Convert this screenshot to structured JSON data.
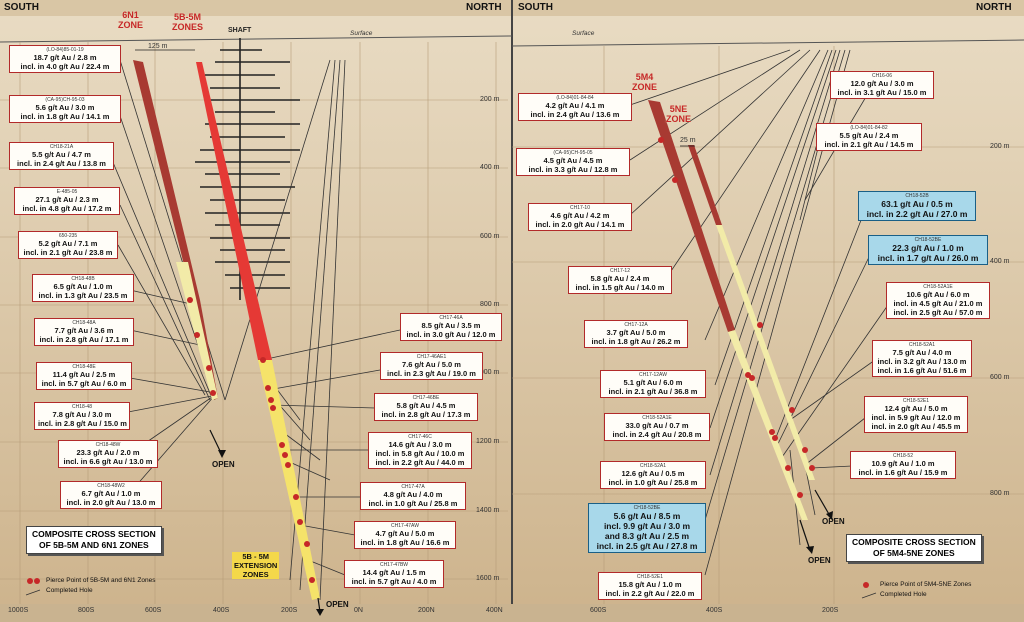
{
  "left_panel": {
    "south_label": "SOUTH",
    "north_label": "NORTH",
    "surface_label": "Surface",
    "shaft_label": "SHAFT",
    "zone_6n1": [
      "6N1",
      "ZONE"
    ],
    "zone_5b5m": [
      "5B-5M",
      "ZONES"
    ],
    "spacing_label": "125 m",
    "extension_label": [
      "5B - 5M",
      "EXTENSION",
      "ZONES"
    ],
    "open_labels": [
      "OPEN",
      "OPEN"
    ],
    "title": [
      "COMPOSITE CROSS SECTION",
      "OF 5B-5M AND 6N1 ZONES"
    ],
    "legend": {
      "pierce": "Pierce Point of 5B-5M and 6N1 Zones",
      "hole": "Completed Hole"
    },
    "depths": [
      "200 m",
      "400 m",
      "600 m",
      "800 m",
      "1000 m",
      "1200 m",
      "1400 m",
      "1600 m"
    ],
    "eastings": [
      "1000S",
      "800S",
      "600S",
      "400S",
      "200S",
      "0N",
      "200N",
      "400N"
    ],
    "labels": [
      {
        "hole": "(LO-84)85-01-19",
        "lines": [
          "18.7 g/t Au / 2.8 m",
          "incl. in 4.0 g/t Au / 22.4 m"
        ]
      },
      {
        "hole": "(CA-95)CH-95-03",
        "lines": [
          "5.6 g/t Au / 3.0 m",
          "incl. in 1.8 g/t Au / 14.1 m"
        ]
      },
      {
        "hole": "CH18-21A",
        "lines": [
          "5.5 g/t Au / 4.7 m",
          "incl. in 2.4 g/t Au / 13.8 m"
        ]
      },
      {
        "hole": "E-485-05",
        "lines": [
          "27.1 g/t Au / 2.3 m",
          "incl. in 4.8 g/t Au / 17.2 m"
        ]
      },
      {
        "hole": "650-235",
        "lines": [
          "5.2 g/t Au / 7.1 m",
          "incl. in 2.1 g/t Au / 23.8 m"
        ]
      },
      {
        "hole": "CH18-48B",
        "lines": [
          "6.5 g/t Au / 1.0 m",
          "incl. in 1.3 g/t Au / 23.5 m"
        ]
      },
      {
        "hole": "CH18-48A",
        "lines": [
          "7.7 g/t Au / 3.6 m",
          "incl. in 2.8 g/t Au / 17.1 m"
        ]
      },
      {
        "hole": "CH18-48E",
        "lines": [
          "11.4 g/t Au / 2.5 m",
          "incl. in 5.7 g/t Au / 6.0 m"
        ]
      },
      {
        "hole": "CH18-48",
        "lines": [
          "7.8 g/t Au / 3.0 m",
          "incl. in 2.8 g/t Au / 15.0 m"
        ]
      },
      {
        "hole": "CH18-48W",
        "lines": [
          "23.3 g/t Au / 2.0 m",
          "incl. in 6.6 g/t Au / 13.0 m"
        ]
      },
      {
        "hole": "CH18-48W2",
        "lines": [
          "6.7 g/t Au / 1.0 m",
          "incl. in 2.0 g/t Au / 13.0 m"
        ]
      },
      {
        "hole": "CH17-46A",
        "lines": [
          "8.5 g/t Au / 3.5 m",
          "incl. in 3.0 g/t Au / 12.0 m"
        ]
      },
      {
        "hole": "CH17-46AE1",
        "lines": [
          "7.6 g/t Au / 5.0 m",
          "incl. in 2.3 g/t Au / 19.0 m"
        ]
      },
      {
        "hole": "CH17-46BE",
        "lines": [
          "5.8 g/t Au / 4.5 m",
          "incl. in 2.8 g/t Au / 17.3 m"
        ]
      },
      {
        "hole": "CH17-46C",
        "lines": [
          "14.6 g/t Au / 3.0 m",
          "incl. in 5.8 g/t Au / 10.0 m",
          "incl. in 2.2 g/t Au / 44.0 m"
        ]
      },
      {
        "hole": "CH17-47A",
        "lines": [
          "4.8 g/t Au / 4.0 m",
          "incl. in 1.0 g/t Au / 25.8 m"
        ]
      },
      {
        "hole": "CH17-47AW",
        "lines": [
          "4.7 g/t Au / 5.0 m",
          "incl. in 1.8 g/t Au / 16.6 m"
        ]
      },
      {
        "hole": "CH17-47BW",
        "lines": [
          "14.4 g/t Au / 1.5 m",
          "incl. in 5.7 g/t Au / 4.0 m"
        ]
      }
    ]
  },
  "right_panel": {
    "south_label": "SOUTH",
    "north_label": "NORTH",
    "surface_label": "Surface",
    "zone_5m4": [
      "5M4",
      "ZONE"
    ],
    "zone_5ne": [
      "5NE",
      "ZONE"
    ],
    "spacing_label": "25 m",
    "open_labels": [
      "OPEN",
      "OPEN"
    ],
    "title": [
      "COMPOSITE CROSS SECTION",
      "OF 5M4-5NE ZONES"
    ],
    "legend": {
      "pierce": "Pierce Point of 5M4-5NE Zones",
      "hole": "Completed Hole"
    },
    "depths": [
      "200 m",
      "400 m",
      "600 m",
      "800 m"
    ],
    "depths_left": [
      "200 m",
      "400 m",
      "600 m",
      "800 m"
    ],
    "eastings": [
      "600S",
      "400S",
      "200S"
    ],
    "labels": [
      {
        "hole": "(LO-84)01-84-84",
        "lines": [
          "4.2 g/t Au / 4.1 m",
          "incl. in 2.4 g/t Au / 13.6 m"
        ]
      },
      {
        "hole": "(CA-95)CH-95-05",
        "lines": [
          "4.5 g/t Au / 4.5 m",
          "incl. in 3.3 g/t Au / 12.8 m"
        ]
      },
      {
        "hole": "CH17-10",
        "lines": [
          "4.6 g/t Au / 4.2 m",
          "incl. in 2.0 g/t Au / 14.1 m"
        ]
      },
      {
        "hole": "CH17-12",
        "lines": [
          "5.8 g/t Au / 2.4 m",
          "incl. in 1.5 g/t Au / 14.0 m"
        ]
      },
      {
        "hole": "CH17-12A",
        "lines": [
          "3.7 g/t Au / 5.0 m",
          "incl. in 1.8 g/t Au / 26.2 m"
        ]
      },
      {
        "hole": "CH17-12AW",
        "lines": [
          "5.1 g/t Au / 6.0 m",
          "incl. in 2.1 g/t Au / 36.8 m"
        ]
      },
      {
        "hole": "CH18-52A1E",
        "lines": [
          "33.0 g/t Au / 0.7 m",
          "incl. in 2.4 g/t Au / 20.8 m"
        ]
      },
      {
        "hole": "CH18-52A1",
        "lines": [
          "12.6 g/t Au / 0.5 m",
          "incl. in 1.0 g/t Au / 25.8 m"
        ]
      },
      {
        "hole": "CH18-52BE",
        "lines": [
          "5.6 g/t Au / 8.5 m",
          "incl. 9.9 g/t Au / 3.0 m",
          "and 8.3 g/t Au / 2.5 m",
          "incl. in 2.5 g/t Au / 27.8 m"
        ]
      },
      {
        "hole": "CH18-52E1",
        "lines": [
          "15.8 g/t Au / 1.0 m",
          "incl. in 2.2 g/t Au / 22.0 m"
        ]
      },
      {
        "hole": "CH16-06",
        "lines": [
          "12.0 g/t Au / 3.0 m",
          "incl. in 3.1 g/t Au / 15.0 m"
        ]
      },
      {
        "hole": "(LO-84)01-84-82",
        "lines": [
          "5.5 g/t Au / 2.4 m",
          "incl. in 2.1 g/t Au / 14.5 m"
        ]
      },
      {
        "hole": "CH18-52B",
        "lines": [
          "63.1 g/t Au / 0.5 m",
          "incl. in 2.2 g/t Au / 27.0 m"
        ]
      },
      {
        "hole": "CH18-52BE",
        "lines": [
          "22.3 g/t Au / 1.0 m",
          "incl. in 1.7 g/t Au / 26.0 m"
        ]
      },
      {
        "hole": "CH18-52A1E",
        "lines": [
          "10.6 g/t Au / 6.0 m",
          "incl. in 4.5 g/t Au / 21.0 m",
          "incl. in 2.5 g/t Au / 57.0 m"
        ]
      },
      {
        "hole": "CH18-52A1",
        "lines": [
          "7.5 g/t Au / 4.0 m",
          "incl. in 3.2 g/t Au / 13.0 m",
          "incl. in 1.6 g/t Au / 51.6 m"
        ]
      },
      {
        "hole": "CH18-52E1",
        "lines": [
          "12.4 g/t Au / 5.0 m",
          "incl. in 5.9 g/t Au / 12.0 m",
          "incl. in 2.0 g/t Au / 45.5 m"
        ]
      },
      {
        "hole": "CH18-52",
        "lines": [
          "10.9 g/t Au / 1.0 m",
          "incl. in 1.6 g/t Au / 15.9 m"
        ]
      }
    ]
  }
}
